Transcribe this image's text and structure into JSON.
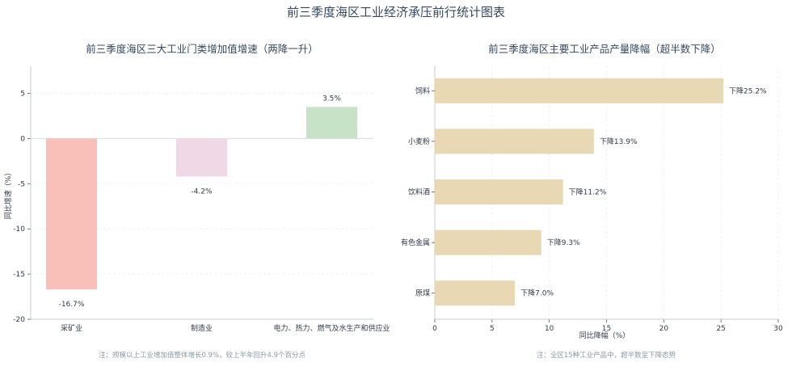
{
  "main_title": "前三季度海区工业经济承压前行统计图表",
  "chart_data": [
    {
      "type": "bar",
      "title": "前三季度海区三大工业门类增加值增速（两降一升）",
      "xlabel": "",
      "ylabel": "同比增速（%）",
      "categories": [
        "采矿业",
        "制造业",
        "电力、热力、燃气及水生产和供应业"
      ],
      "values": [
        -16.7,
        -4.2,
        3.5
      ],
      "value_labels": [
        "-16.7%",
        "-4.2%",
        "3.5%"
      ],
      "colors": [
        "#f8c0b8",
        "#f0d8e6",
        "#c6e3c8"
      ],
      "label_colors": [
        "#e74c5b",
        "#34495e",
        "#34495e"
      ],
      "ylim": [
        -20,
        8
      ],
      "yticks": [
        5,
        0,
        -5,
        -10,
        -15,
        -20
      ],
      "grid": true,
      "note": "注：规模以上工业增加值整体增长0.9%，较上半年回升4.9个百分点"
    },
    {
      "type": "bar",
      "orientation": "horizontal",
      "title": "前三季度海区主要工业产品产量降幅（超半数下降）",
      "xlabel": "同比降幅（%）",
      "ylabel": "",
      "categories": [
        "饲料",
        "小麦粉",
        "饮料酒",
        "有色金属",
        "原煤"
      ],
      "values": [
        25.2,
        13.9,
        11.2,
        9.3,
        7.0
      ],
      "value_labels": [
        "下降25.2%",
        "下降13.9%",
        "下降11.2%",
        "下降9.3%",
        "下降7.0%"
      ],
      "color": "#e8d9b4",
      "label_colors": [
        "#e74c5b",
        "#34495e",
        "#34495e",
        "#34495e",
        "#34495e"
      ],
      "xlim": [
        0,
        30
      ],
      "xticks": [
        0,
        5,
        10,
        15,
        20,
        25,
        30
      ],
      "grid": true,
      "note": "注：全区15种工业产品中，超半数呈下降态势"
    }
  ]
}
